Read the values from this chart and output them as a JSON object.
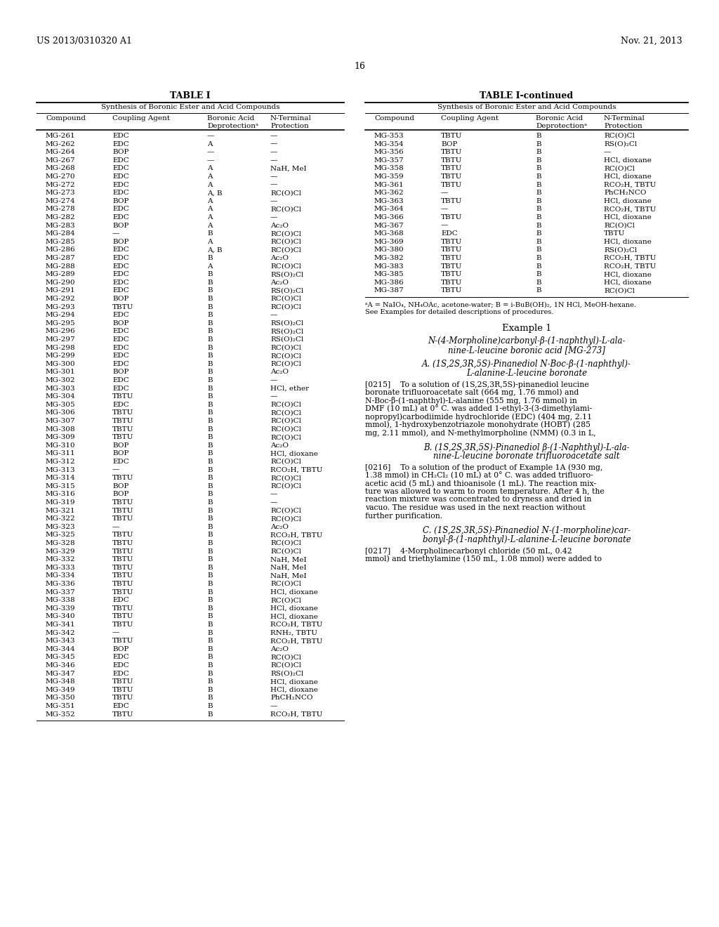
{
  "patent_number": "US 2013/0310320 A1",
  "date": "Nov. 21, 2013",
  "page_number": "16",
  "background_color": "#ffffff",
  "left_table": {
    "title": "TABLE I",
    "subtitle": "Synthesis of Boronic Ester and Acid Compounds",
    "col_headers": [
      "Compound",
      "Coupling Agent",
      "Boronic Acid\nDeprotectionᵃ",
      "N-Terminal\nProtection"
    ],
    "rows": [
      [
        "MG-261",
        "EDC",
        "—",
        "—"
      ],
      [
        "MG-262",
        "EDC",
        "A",
        "—"
      ],
      [
        "MG-264",
        "BOP",
        "—",
        "—"
      ],
      [
        "MG-267",
        "EDC",
        "—",
        "—"
      ],
      [
        "MG-268",
        "EDC",
        "A",
        "NaH, MeI"
      ],
      [
        "MG-270",
        "EDC",
        "A",
        "—"
      ],
      [
        "MG-272",
        "EDC",
        "A",
        "—"
      ],
      [
        "MG-273",
        "EDC",
        "A, B",
        "RC(O)Cl"
      ],
      [
        "MG-274",
        "BOP",
        "A",
        "—"
      ],
      [
        "MG-278",
        "EDC",
        "A",
        "RC(O)Cl"
      ],
      [
        "MG-282",
        "EDC",
        "A",
        "—"
      ],
      [
        "MG-283",
        "BOP",
        "A",
        "Ac₂O"
      ],
      [
        "MG-284",
        "—",
        "B",
        "RC(O)Cl"
      ],
      [
        "MG-285",
        "BOP",
        "A",
        "RC(O)Cl"
      ],
      [
        "MG-286",
        "EDC",
        "A, B",
        "RC(O)Cl"
      ],
      [
        "MG-287",
        "EDC",
        "B",
        "Ac₂O"
      ],
      [
        "MG-288",
        "EDC",
        "A",
        "RC(O)Cl"
      ],
      [
        "MG-289",
        "EDC",
        "B",
        "RS(O)₂Cl"
      ],
      [
        "MG-290",
        "EDC",
        "B",
        "Ac₂O"
      ],
      [
        "MG-291",
        "EDC",
        "B",
        "RS(O)₂Cl"
      ],
      [
        "MG-292",
        "BOP",
        "B",
        "RC(O)Cl"
      ],
      [
        "MG-293",
        "TBTU",
        "B",
        "RC(O)Cl"
      ],
      [
        "MG-294",
        "EDC",
        "B",
        "—"
      ],
      [
        "MG-295",
        "BOP",
        "B",
        "RS(O)₂Cl"
      ],
      [
        "MG-296",
        "EDC",
        "B",
        "RS(O)₂Cl"
      ],
      [
        "MG-297",
        "EDC",
        "B",
        "RS(O)₂Cl"
      ],
      [
        "MG-298",
        "EDC",
        "B",
        "RC(O)Cl"
      ],
      [
        "MG-299",
        "EDC",
        "B",
        "RC(O)Cl"
      ],
      [
        "MG-300",
        "EDC",
        "B",
        "RC(O)Cl"
      ],
      [
        "MG-301",
        "BOP",
        "B",
        "Ac₂O"
      ],
      [
        "MG-302",
        "EDC",
        "B",
        "—"
      ],
      [
        "MG-303",
        "EDC",
        "B",
        "HCl, ether"
      ],
      [
        "MG-304",
        "TBTU",
        "B",
        "—"
      ],
      [
        "MG-305",
        "EDC",
        "B",
        "RC(O)Cl"
      ],
      [
        "MG-306",
        "TBTU",
        "B",
        "RC(O)Cl"
      ],
      [
        "MG-307",
        "TBTU",
        "B",
        "RC(O)Cl"
      ],
      [
        "MG-308",
        "TBTU",
        "B",
        "RC(O)Cl"
      ],
      [
        "MG-309",
        "TBTU",
        "B",
        "RC(O)Cl"
      ],
      [
        "MG-310",
        "BOP",
        "B",
        "Ac₂O"
      ],
      [
        "MG-311",
        "BOP",
        "B",
        "HCl, dioxane"
      ],
      [
        "MG-312",
        "EDC",
        "B",
        "RC(O)Cl"
      ],
      [
        "MG-313",
        "—",
        "B",
        "RCO₂H, TBTU"
      ],
      [
        "MG-314",
        "TBTU",
        "B",
        "RC(O)Cl"
      ],
      [
        "MG-315",
        "BOP",
        "B",
        "RC(O)Cl"
      ],
      [
        "MG-316",
        "BOP",
        "B",
        "—"
      ],
      [
        "MG-319",
        "TBTU",
        "B",
        "—"
      ],
      [
        "MG-321",
        "TBTU",
        "B",
        "RC(O)Cl"
      ],
      [
        "MG-322",
        "TBTU",
        "B",
        "RC(O)Cl"
      ],
      [
        "MG-323",
        "—",
        "B",
        "Ac₂O"
      ],
      [
        "MG-325",
        "TBTU",
        "B",
        "RCO₂H, TBTU"
      ],
      [
        "MG-328",
        "TBTU",
        "B",
        "RC(O)Cl"
      ],
      [
        "MG-329",
        "TBTU",
        "B",
        "RC(O)Cl"
      ],
      [
        "MG-332",
        "TBTU",
        "B",
        "NaH, MeI"
      ],
      [
        "MG-333",
        "TBTU",
        "B",
        "NaH, MeI"
      ],
      [
        "MG-334",
        "TBTU",
        "B",
        "NaH, MeI"
      ],
      [
        "MG-336",
        "TBTU",
        "B",
        "RC(O)Cl"
      ],
      [
        "MG-337",
        "TBTU",
        "B",
        "HCl, dioxane"
      ],
      [
        "MG-338",
        "EDC",
        "B",
        "RC(O)Cl"
      ],
      [
        "MG-339",
        "TBTU",
        "B",
        "HCl, dioxane"
      ],
      [
        "MG-340",
        "TBTU",
        "B",
        "HCl, dioxane"
      ],
      [
        "MG-341",
        "TBTU",
        "B",
        "RCO₂H, TBTU"
      ],
      [
        "MG-342",
        "—",
        "B",
        "RNH₂, TBTU"
      ],
      [
        "MG-343",
        "TBTU",
        "B",
        "RCO₂H, TBTU"
      ],
      [
        "MG-344",
        "BOP",
        "B",
        "Ac₂O"
      ],
      [
        "MG-345",
        "EDC",
        "B",
        "RC(O)Cl"
      ],
      [
        "MG-346",
        "EDC",
        "B",
        "RC(O)Cl"
      ],
      [
        "MG-347",
        "EDC",
        "B",
        "RS(O)₂Cl"
      ],
      [
        "MG-348",
        "TBTU",
        "B",
        "HCl, dioxane"
      ],
      [
        "MG-349",
        "TBTU",
        "B",
        "HCl, dioxane"
      ],
      [
        "MG-350",
        "TBTU",
        "B",
        "PhCH₂NCO"
      ],
      [
        "MG-351",
        "EDC",
        "B",
        "—"
      ],
      [
        "MG-352",
        "TBTU",
        "B",
        "RCO₂H, TBTU"
      ]
    ]
  },
  "right_table": {
    "title": "TABLE I-continued",
    "subtitle": "Synthesis of Boronic Ester and Acid Compounds",
    "col_headers": [
      "Compound",
      "Coupling Agent",
      "Boronic Acid\nDeprotectionᵃ",
      "N-Terminal\nProtection"
    ],
    "rows": [
      [
        "MG-353",
        "TBTU",
        "B",
        "RC(O)Cl"
      ],
      [
        "MG-354",
        "BOP",
        "B",
        "RS(O)₂Cl"
      ],
      [
        "MG-356",
        "TBTU",
        "B",
        "—"
      ],
      [
        "MG-357",
        "TBTU",
        "B",
        "HCl, dioxane"
      ],
      [
        "MG-358",
        "TBTU",
        "B",
        "RC(O)Cl"
      ],
      [
        "MG-359",
        "TBTU",
        "B",
        "HCl, dioxane"
      ],
      [
        "MG-361",
        "TBTU",
        "B",
        "RCO₂H, TBTU"
      ],
      [
        "MG-362",
        "—",
        "B",
        "PhCH₂NCO"
      ],
      [
        "MG-363",
        "TBTU",
        "B",
        "HCl, dioxane"
      ],
      [
        "MG-364",
        "—",
        "B",
        "RCO₂H, TBTU"
      ],
      [
        "MG-366",
        "TBTU",
        "B",
        "HCl, dioxane"
      ],
      [
        "MG-367",
        "—",
        "B",
        "RC(O)Cl"
      ],
      [
        "MG-368",
        "EDC",
        "B",
        "TBTU"
      ],
      [
        "MG-369",
        "TBTU",
        "B",
        "HCl, dioxane"
      ],
      [
        "MG-380",
        "TBTU",
        "B",
        "RS(O)₂Cl"
      ],
      [
        "MG-382",
        "TBTU",
        "B",
        "RCO₂H, TBTU"
      ],
      [
        "MG-383",
        "TBTU",
        "B",
        "RCO₂H, TBTU"
      ],
      [
        "MG-385",
        "TBTU",
        "B",
        "HCl, dioxane"
      ],
      [
        "MG-386",
        "TBTU",
        "B",
        "HCl, dioxane"
      ],
      [
        "MG-387",
        "TBTU",
        "B",
        "RC(O)Cl"
      ]
    ],
    "footnote_line1": "ᵃA = NaIO₄, NH₄OAc, acetone-water; B = i-BuB(OH)₂, 1N HCl, MeOH-hexane.",
    "footnote_line2": "See Examples for detailed descriptions of procedures."
  },
  "example1": {
    "title": "Example 1",
    "subtitle_line1": "N-(4-Morpholine)carbonyl-β-(1-naphthyl)-L-ala-",
    "subtitle_line2": "nine-L-leucine boronic acid [MG-273]",
    "sectionA_title_line1": "A. (1S,2S,3R,5S)-Pinanediol N-Boc-β-(1-naphthyl)-",
    "sectionA_title_line2": "L-alanine-L-leucine boronate",
    "sectionA_para": "[0215]    To a solution of (1S,2S,3R,5S)-pinanediol leucine boronate trifluoroacetate salt (664 mg, 1.76 mmol) and N-Boc-β-(1-naphthyl)-L-alanine (555 mg, 1.76 mmol) in DMF (10 mL) at 0° C. was added 1-ethyl-3-(3-dimethylaminopropyl)carbodiimide hydrochloride (EDC) (404 mg, 2.11 mmol), 1-hydroxybenzotriazole monohydrate (HOBT) (285 mg, 2.11 mmol), and N-methylmorpholine (NMM) (0.3 in L,",
    "sectionB_title_line1": "B. (1S,2S,3R,5S)-Pinanediol β-(1-Naphthyl)-L-ala-",
    "sectionB_title_line2": "nine-L-leucine boronate trifluoroacetate salt",
    "sectionB_para": "[0216]    To a solution of the product of Example 1A (930 mg, 1.38 mmol) in CH₂Cl₂ (10 mL) at 0° C. was added trifluoroacetic acid (5 mL) and thioanisole (1 mL). The reaction mixture was allowed to warm to room temperature. After 4 h, the reaction mixture was concentrated to dryness and dried in vacuo. The residue was used in the next reaction without further purification.",
    "sectionC_title_line1": "C. (1S,2S,3R,5S)-Pinanediol N-(1-morpholine)car-",
    "sectionC_title_line2": "bonyl-β-(1-naphthyl)-L-alanine-L-leucine boronate",
    "sectionC_para": "[0217]    4-Morpholinecarbonyl chloride (50 mL, 0.42 mmol) and triethylamine (150 mL, 1.08 mmol) were added to"
  }
}
